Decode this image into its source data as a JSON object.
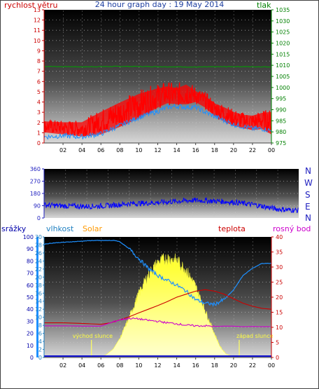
{
  "title": "24 hour graph day : 19 May 2014",
  "chart_data": [
    {
      "type": "line",
      "panel": "wind-pressure",
      "left_label": "rychlost větru",
      "right_label": "tlak",
      "y_left_ticks": [
        0,
        1,
        2,
        3,
        4,
        5,
        6,
        7,
        8,
        9,
        10,
        11,
        12,
        13
      ],
      "y_left_range": [
        0,
        13
      ],
      "y_right_ticks": [
        975,
        980,
        985,
        990,
        995,
        1000,
        1005,
        1010,
        1015,
        1020,
        1025,
        1030,
        1035
      ],
      "y_right_range": [
        975,
        1035
      ],
      "x_ticks": [
        "02",
        "04",
        "06",
        "08",
        "10",
        "12",
        "14",
        "16",
        "18",
        "20",
        "22",
        "00"
      ],
      "x_range_hours": [
        0,
        24
      ],
      "grid": true,
      "series": [
        {
          "role": "pressure",
          "axis": "right",
          "color": "#00a000",
          "x": [
            0,
            4,
            8,
            12,
            16,
            20,
            24
          ],
          "y": [
            1009.5,
            1009.3,
            1009.5,
            1009.4,
            1009.2,
            1009.4,
            1009.3
          ]
        },
        {
          "role": "wind-gust",
          "axis": "left",
          "color": "#ff0000",
          "style": "filled-noisy",
          "x": [
            0,
            2,
            4,
            6,
            8,
            10,
            12,
            13,
            14,
            15,
            16,
            17,
            18,
            19,
            20,
            21,
            22,
            23,
            24
          ],
          "low": [
            1.0,
            0.8,
            0.6,
            0.8,
            1.5,
            2.3,
            3.3,
            3.7,
            3.6,
            3.6,
            3.8,
            3.3,
            2.5,
            2.0,
            1.6,
            1.4,
            1.2,
            1.3,
            0.8
          ],
          "high": [
            2.3,
            2.2,
            2.2,
            3.3,
            4.3,
            5.2,
            5.8,
            6.0,
            5.8,
            6.2,
            5.5,
            5.0,
            4.2,
            3.8,
            3.3,
            3.0,
            2.9,
            3.2,
            3.3
          ]
        },
        {
          "role": "wind-speed",
          "axis": "left",
          "color": "#1e90ff",
          "x": [
            0,
            2,
            4,
            6,
            8,
            10,
            12,
            13,
            14,
            15,
            16,
            17,
            18,
            19,
            20,
            21,
            22,
            23,
            24
          ],
          "y": [
            0.6,
            0.7,
            0.6,
            0.9,
            1.7,
            2.5,
            3.1,
            3.5,
            3.6,
            3.5,
            3.5,
            3.0,
            2.6,
            2.2,
            1.8,
            1.6,
            1.4,
            1.4,
            1.2
          ]
        }
      ]
    },
    {
      "type": "line",
      "panel": "wind-direction",
      "y_left_ticks": [
        0,
        90,
        180,
        270,
        360
      ],
      "y_left_range": [
        0,
        360
      ],
      "compass_labels": [
        "N",
        "W",
        "S",
        "E",
        "N"
      ],
      "x_range_hours": [
        0,
        24
      ],
      "grid": true,
      "series": [
        {
          "role": "wind-direction",
          "color": "#0000ff",
          "x": [
            0,
            2,
            4,
            6,
            8,
            10,
            12,
            14,
            16,
            18,
            20,
            22,
            24
          ],
          "y": [
            95,
            88,
            85,
            90,
            105,
            110,
            120,
            130,
            125,
            115,
            95,
            65,
            55
          ]
        }
      ]
    },
    {
      "type": "line",
      "panel": "rain-humidity-solar-temperature",
      "labels": {
        "rain": "srážky",
        "humidity": "vlhkost",
        "solar": "Solar",
        "temperature": "teplota",
        "dewpoint": "rosný bod"
      },
      "label_colors": {
        "rain": "#0000cc",
        "humidity": "#1e7fc0",
        "solar": "#ff9900",
        "temperature": "#cc0000",
        "dewpoint": "#cc00cc"
      },
      "y_rain_ticks": [
        0,
        10,
        20,
        30,
        40,
        50,
        60,
        70,
        80,
        90,
        100
      ],
      "y_rain_range": [
        0,
        100
      ],
      "y_humidity_ticks": [
        0,
        2,
        4,
        6,
        8,
        10,
        12,
        14,
        16,
        18,
        20,
        22,
        24,
        26,
        28,
        30
      ],
      "y_humidity_range": [
        0,
        30
      ],
      "y_temp_ticks": [
        0,
        5,
        10,
        15,
        20,
        25,
        30,
        35,
        40
      ],
      "y_temp_range": [
        0,
        40
      ],
      "x_ticks": [
        "02",
        "04",
        "06",
        "08",
        "10",
        "12",
        "14",
        "16",
        "18",
        "20",
        "22",
        "00"
      ],
      "x_range_hours": [
        0,
        24
      ],
      "grid": true,
      "annotations": {
        "sunrise": "východ slunce",
        "sunset": "západ slunce",
        "sunrise_hour": 5.0,
        "sunset_hour": 20.6
      },
      "series": [
        {
          "role": "solar",
          "color": "#ffff40",
          "x": [
            5.6,
            6.5,
            7.3,
            8.0,
            9.0,
            10.0,
            11.0,
            12.0,
            13.0,
            14.0,
            15.0,
            16.0,
            17.0,
            18.0,
            18.6,
            19.2,
            20.2
          ],
          "y": [
            0,
            2,
            7,
            16,
            34,
            54,
            70,
            80,
            84,
            82,
            74,
            60,
            40,
            20,
            9,
            3,
            0
          ]
        },
        {
          "role": "humidity",
          "color": "#1e90ff",
          "axis": "humidity",
          "x": [
            0,
            1,
            3,
            5,
            6,
            7,
            7.5,
            8,
            9,
            10,
            11,
            12,
            13,
            14,
            15,
            16,
            17,
            18,
            19,
            20,
            21,
            22,
            23,
            24
          ],
          "y": [
            94,
            95,
            96,
            97,
            97,
            97,
            97,
            96,
            90,
            82,
            74,
            68,
            64,
            60,
            55,
            48,
            45,
            44,
            48,
            56,
            68,
            74,
            78,
            78
          ]
        },
        {
          "role": "temperature",
          "color": "#cc0000",
          "axis": "temperature",
          "x": [
            0,
            2,
            4,
            6,
            7,
            8,
            9,
            10,
            11,
            12,
            13,
            14,
            15,
            16,
            17,
            18,
            19,
            20,
            21,
            22,
            23,
            24
          ],
          "y": [
            11.5,
            11.5,
            11.3,
            11.0,
            11.5,
            12.5,
            13.5,
            14.8,
            16.0,
            17.2,
            18.5,
            20.0,
            21.0,
            22.0,
            22.5,
            22.0,
            21.0,
            19.5,
            18.0,
            17.0,
            16.3,
            16.0
          ]
        },
        {
          "role": "dewpoint",
          "color": "#cc00cc",
          "axis": "temperature",
          "x": [
            0,
            2,
            4,
            6,
            7,
            8,
            9,
            10,
            11,
            12,
            13,
            14,
            15,
            16,
            17,
            18,
            19,
            20,
            21,
            22,
            23,
            24
          ],
          "y": [
            10.5,
            10.5,
            10.4,
            10.4,
            11.5,
            12.5,
            13.0,
            12.8,
            12.3,
            12.0,
            11.5,
            11.2,
            10.7,
            10.5,
            10.5,
            10.3,
            10.4,
            10.4,
            10.2,
            10.3,
            10.2,
            10.2
          ]
        },
        {
          "role": "rain",
          "color": "#0000cc",
          "axis": "rain",
          "x": [
            0,
            24
          ],
          "y": [
            0.5,
            0.5
          ]
        }
      ]
    }
  ]
}
